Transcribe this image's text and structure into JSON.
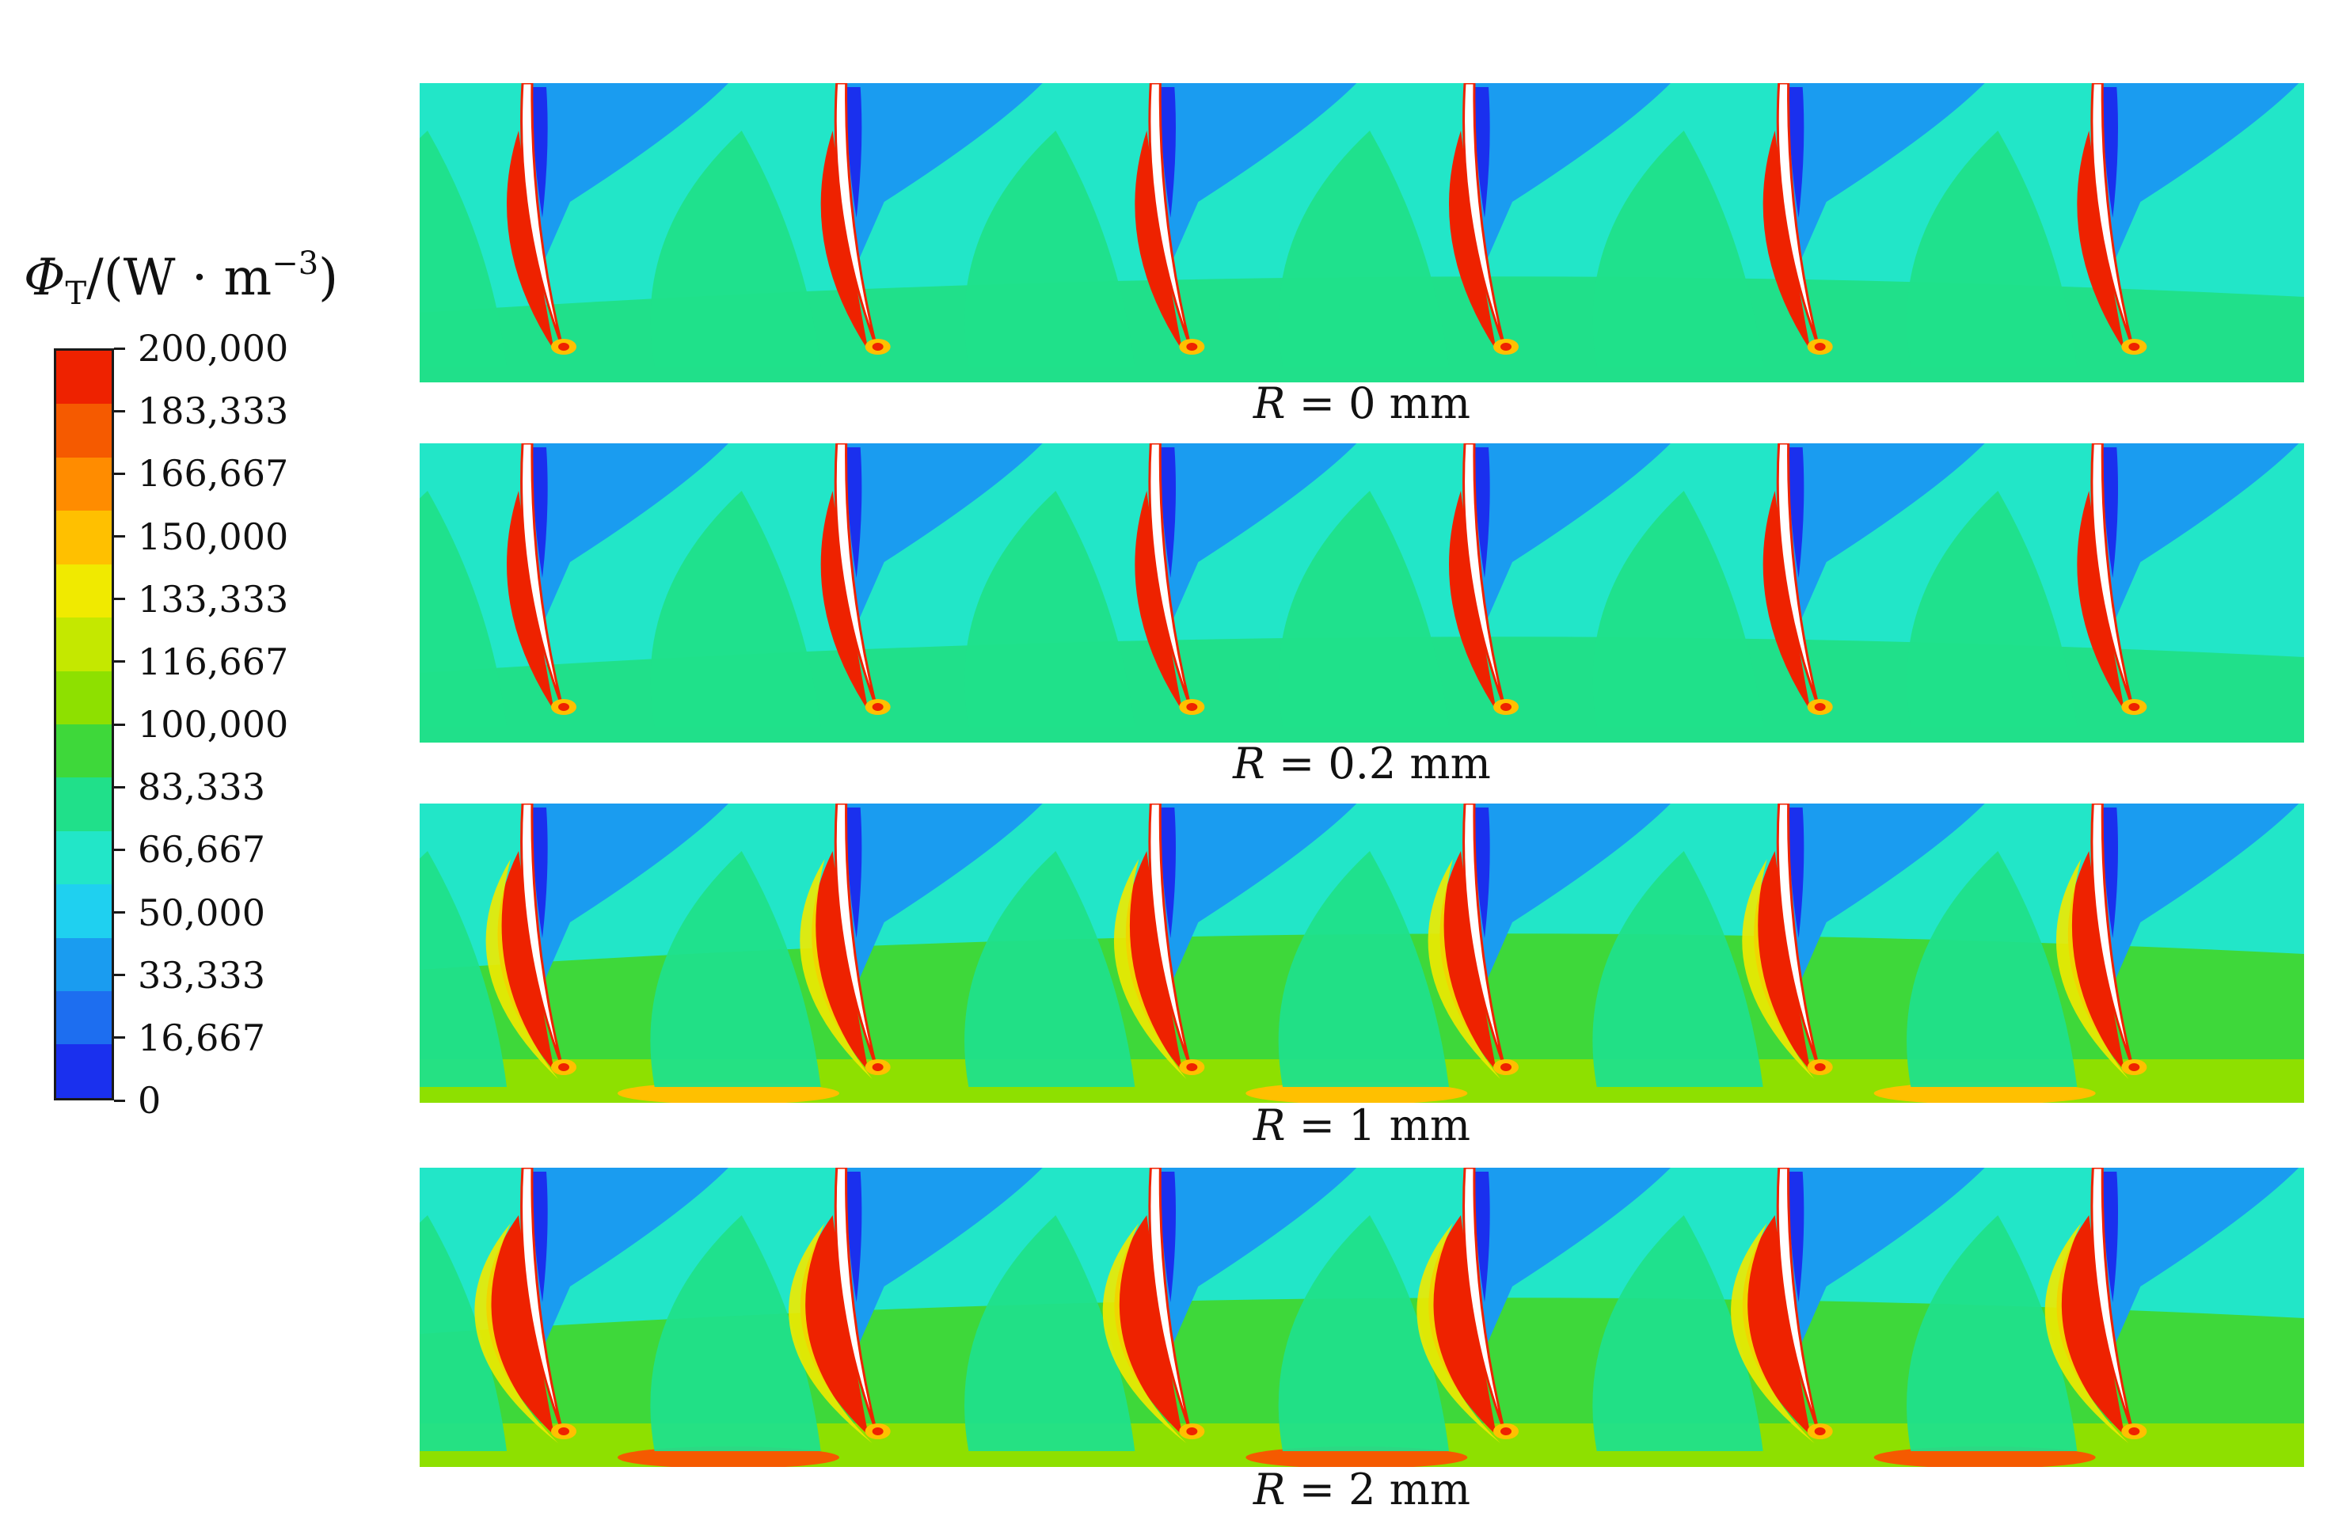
{
  "chart_data": {
    "type": "heatmap",
    "colorbar": {
      "title_symbol": "Φ",
      "title_subscript": "T",
      "title_unit_open": "/(W · m",
      "title_unit_sup": "−3",
      "title_unit_close": ")",
      "min": 0,
      "max": 200000,
      "tick_labels": [
        "200,000",
        "183,333",
        "166,667",
        "150,000",
        "133,333",
        "116,667",
        "100,000",
        "83,333",
        "66,667",
        "50,000",
        "33,333",
        "16,667",
        "0"
      ],
      "tick_values": [
        200000,
        183333,
        166667,
        150000,
        133333,
        116667,
        100000,
        83333,
        66667,
        50000,
        33333,
        16667,
        0
      ],
      "colors": [
        "#ee2200",
        "#f55a00",
        "#ff8c00",
        "#ffc000",
        "#f0ea00",
        "#c4e800",
        "#8ee000",
        "#3ed83a",
        "#20e08a",
        "#22e6c8",
        "#1fd0f0",
        "#1a9cf0",
        "#1d6ef0",
        "#1a30ee"
      ]
    },
    "panels": [
      {
        "label_var": "R",
        "label_rest": " = 0 mm",
        "blades": 6,
        "wake_level": 1
      },
      {
        "label_var": "R",
        "label_rest": " = 0.2 mm",
        "blades": 6,
        "wake_level": 1
      },
      {
        "label_var": "R",
        "label_rest": " = 1 mm",
        "blades": 6,
        "wake_level": 2
      },
      {
        "label_var": "R",
        "label_rest": " = 2 mm",
        "blades": 6,
        "wake_level": 3
      }
    ]
  }
}
